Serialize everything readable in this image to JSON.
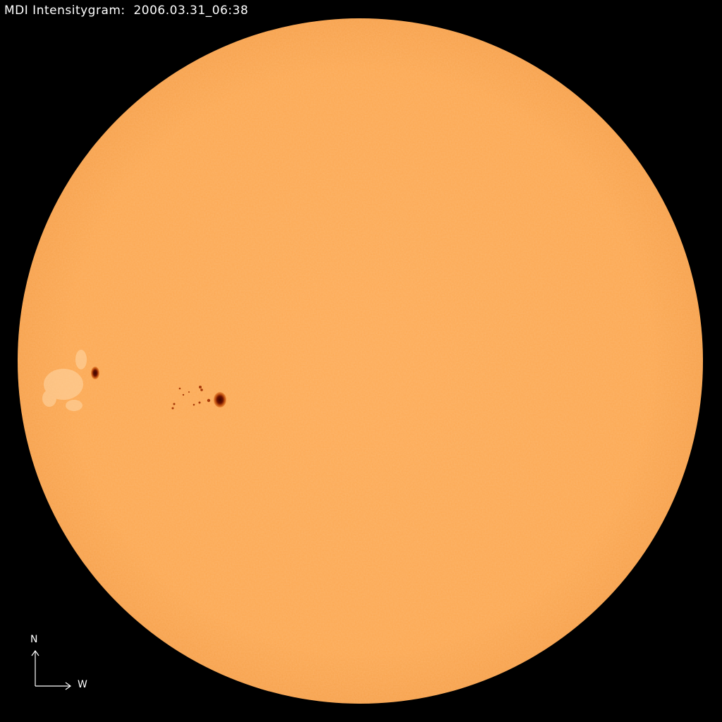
{
  "header": {
    "instrument_label": "MDI Intensitygram:",
    "timestamp": "2006.03.31_06:38"
  },
  "compass": {
    "north_label": "N",
    "west_label": "W"
  },
  "colors": {
    "background": "#000000",
    "disk": "#FDAA55",
    "disk_limb": "#F5A04A",
    "sunspot_penumbra": "#C85A14",
    "sunspot_umbra": "#5A0A00",
    "facula": "#FFD9A8"
  }
}
